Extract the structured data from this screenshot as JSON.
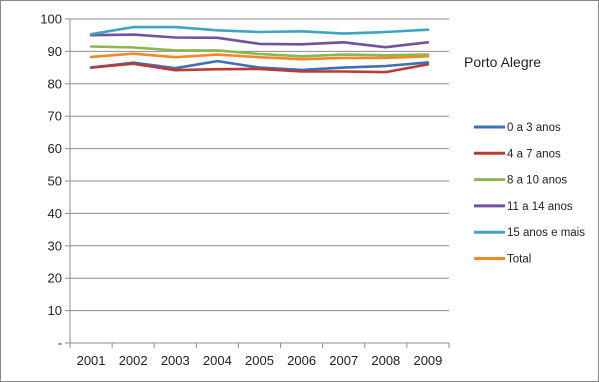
{
  "chart_data": {
    "type": "line",
    "title": "Porto Alegre",
    "categories": [
      "2001",
      "2002",
      "2003",
      "2004",
      "2005",
      "2006",
      "2007",
      "2008",
      "2009"
    ],
    "y_tick_labels": [
      "-",
      "10",
      "20",
      "30",
      "40",
      "50",
      "60",
      "70",
      "80",
      "90",
      "100"
    ],
    "ylim": [
      0,
      100
    ],
    "grid": "horizontal",
    "legend_position": "right",
    "series": [
      {
        "name": "0 a 3 anos",
        "color": "#3F6FB5",
        "values": [
          85.0,
          86.5,
          84.8,
          87.0,
          85.0,
          84.3,
          85.0,
          85.5,
          86.6
        ]
      },
      {
        "name": "4 a 7 anos",
        "color": "#B83B34",
        "values": [
          85.0,
          86.2,
          84.2,
          84.5,
          84.6,
          83.8,
          83.8,
          83.6,
          86.0
        ]
      },
      {
        "name": "8 a 10 anos",
        "color": "#8DB550",
        "values": [
          91.5,
          91.2,
          90.3,
          90.3,
          89.2,
          88.5,
          89.0,
          88.8,
          89.0
        ]
      },
      {
        "name": "11 a 14 anos",
        "color": "#7350A0",
        "values": [
          95.0,
          95.2,
          94.3,
          94.2,
          92.3,
          92.2,
          92.8,
          91.3,
          92.8
        ]
      },
      {
        "name": "15 anos e mais",
        "color": "#3FA4BE",
        "values": [
          95.3,
          97.5,
          97.5,
          96.5,
          96.0,
          96.2,
          95.5,
          96.0,
          96.7
        ]
      },
      {
        "name": "Total",
        "color": "#EE8A2A",
        "values": [
          88.3,
          89.3,
          88.2,
          89.0,
          88.2,
          87.6,
          88.0,
          88.0,
          88.5
        ]
      }
    ]
  }
}
